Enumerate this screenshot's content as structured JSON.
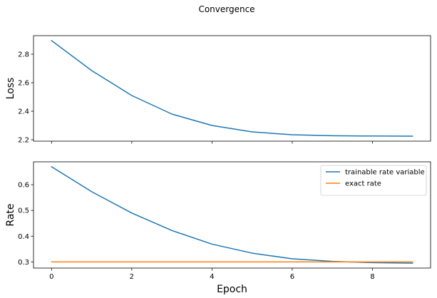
{
  "figure": {
    "title": "Convergence"
  },
  "chart_data": [
    {
      "type": "line",
      "name": "loss",
      "x": [
        0,
        1,
        2,
        3,
        4,
        5,
        6,
        7,
        8,
        9
      ],
      "series": [
        {
          "color": "#1f77b4",
          "values": [
            2.895,
            2.685,
            2.51,
            2.38,
            2.3,
            2.255,
            2.235,
            2.228,
            2.226,
            2.225
          ]
        }
      ],
      "xlabel": "",
      "ylabel": "Loss",
      "xlim": [
        -0.45,
        9.45
      ],
      "ylim": [
        2.19,
        2.93
      ],
      "yticks": [
        2.2,
        2.4,
        2.6,
        2.8
      ],
      "ytick_labels": [
        "2.2",
        "2.4",
        "2.6",
        "2.8"
      ],
      "xticks": [
        0,
        2,
        4,
        6,
        8
      ],
      "show_xtick_labels": false,
      "grid": false,
      "legend": null
    },
    {
      "type": "line",
      "name": "rate",
      "x": [
        0,
        1,
        2,
        3,
        4,
        5,
        6,
        7,
        8,
        9
      ],
      "series": [
        {
          "name": "trainable rate variable",
          "color": "#1f77b4",
          "values": [
            0.67,
            0.573,
            0.49,
            0.422,
            0.369,
            0.334,
            0.312,
            0.302,
            0.297,
            0.295
          ]
        },
        {
          "name": "exact rate",
          "color": "#ff7f0e",
          "values": [
            0.3,
            0.3,
            0.3,
            0.3,
            0.3,
            0.3,
            0.3,
            0.3,
            0.3,
            0.3
          ]
        }
      ],
      "xlabel": "Epoch",
      "ylabel": "Rate",
      "xlim": [
        -0.45,
        9.45
      ],
      "ylim": [
        0.276,
        0.689
      ],
      "yticks": [
        0.3,
        0.4,
        0.5,
        0.6
      ],
      "ytick_labels": [
        "0.3",
        "0.4",
        "0.5",
        "0.6"
      ],
      "xticks": [
        0,
        2,
        4,
        6,
        8
      ],
      "xtick_labels": [
        "0",
        "2",
        "4",
        "6",
        "8"
      ],
      "show_xtick_labels": true,
      "grid": false,
      "legend": "top-right"
    }
  ]
}
